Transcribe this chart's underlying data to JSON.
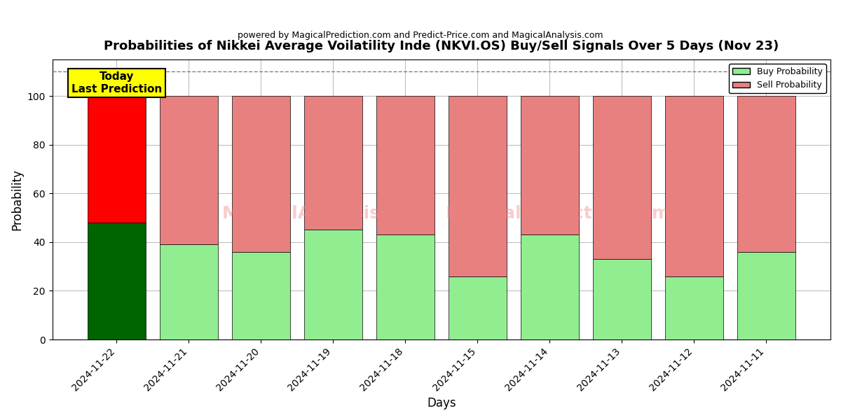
{
  "title": "Probabilities of Nikkei Average Voilatility Inde (NKVI.OS) Buy/Sell Signals Over 5 Days (Nov 23)",
  "subtitle": "powered by MagicalPrediction.com and Predict-Price.com and MagicalAnalysis.com",
  "xlabel": "Days",
  "ylabel": "Probability",
  "categories": [
    "2024-11-22",
    "2024-11-21",
    "2024-11-20",
    "2024-11-19",
    "2024-11-18",
    "2024-11-15",
    "2024-11-14",
    "2024-11-13",
    "2024-11-12",
    "2024-11-11"
  ],
  "buy_values": [
    48,
    39,
    36,
    45,
    43,
    26,
    43,
    33,
    26,
    36
  ],
  "sell_values": [
    52,
    61,
    64,
    55,
    57,
    74,
    57,
    67,
    74,
    64
  ],
  "today_buy_color": "#006400",
  "today_sell_color": "#ff0000",
  "buy_color": "#90EE90",
  "sell_color": "#E88080",
  "today_annotation": "Today\nLast Prediction",
  "annotation_bg_color": "#FFFF00",
  "dashed_line_y": 110,
  "ylim": [
    0,
    115
  ],
  "watermark_texts": [
    "MagicalAnalysis.com",
    "MagicalPrediction.com"
  ],
  "legend_buy_label": "Buy Probability",
  "legend_sell_label": "Sell Probability"
}
